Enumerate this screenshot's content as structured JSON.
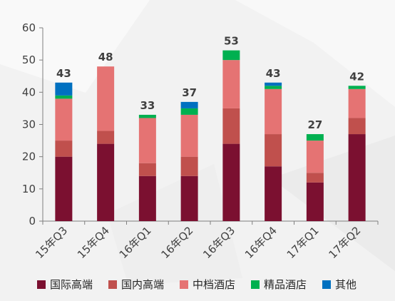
{
  "chart_data": {
    "type": "bar",
    "stacked": true,
    "categories": [
      "15年Q3",
      "15年Q4",
      "16年Q1",
      "16年Q2",
      "16年Q3",
      "16年Q4",
      "17年Q1",
      "17年Q2"
    ],
    "totals": [
      43,
      48,
      33,
      37,
      53,
      43,
      27,
      42
    ],
    "series": [
      {
        "name": "国际高端",
        "color": "#7b1030",
        "values": [
          20,
          24,
          14,
          14,
          24,
          17,
          12,
          27
        ]
      },
      {
        "name": "国内高端",
        "color": "#c0504d",
        "values": [
          5,
          4,
          4,
          6,
          11,
          10,
          3,
          5
        ]
      },
      {
        "name": "中档酒店",
        "color": "#e57373",
        "values": [
          13,
          20,
          14,
          13,
          15,
          14,
          10,
          9
        ]
      },
      {
        "name": "精品酒店",
        "color": "#00b050",
        "values": [
          1,
          0,
          1,
          2,
          3,
          1,
          2,
          1
        ]
      },
      {
        "name": "其他",
        "color": "#0070c0",
        "values": [
          4,
          0,
          0,
          2,
          0,
          1,
          0,
          0
        ]
      }
    ],
    "yticks": [
      0,
      10,
      20,
      30,
      40,
      50,
      60
    ],
    "ylim": [
      0,
      60
    ],
    "xlabel": "",
    "ylabel": "",
    "grid": false,
    "legend_position": "bottom"
  }
}
